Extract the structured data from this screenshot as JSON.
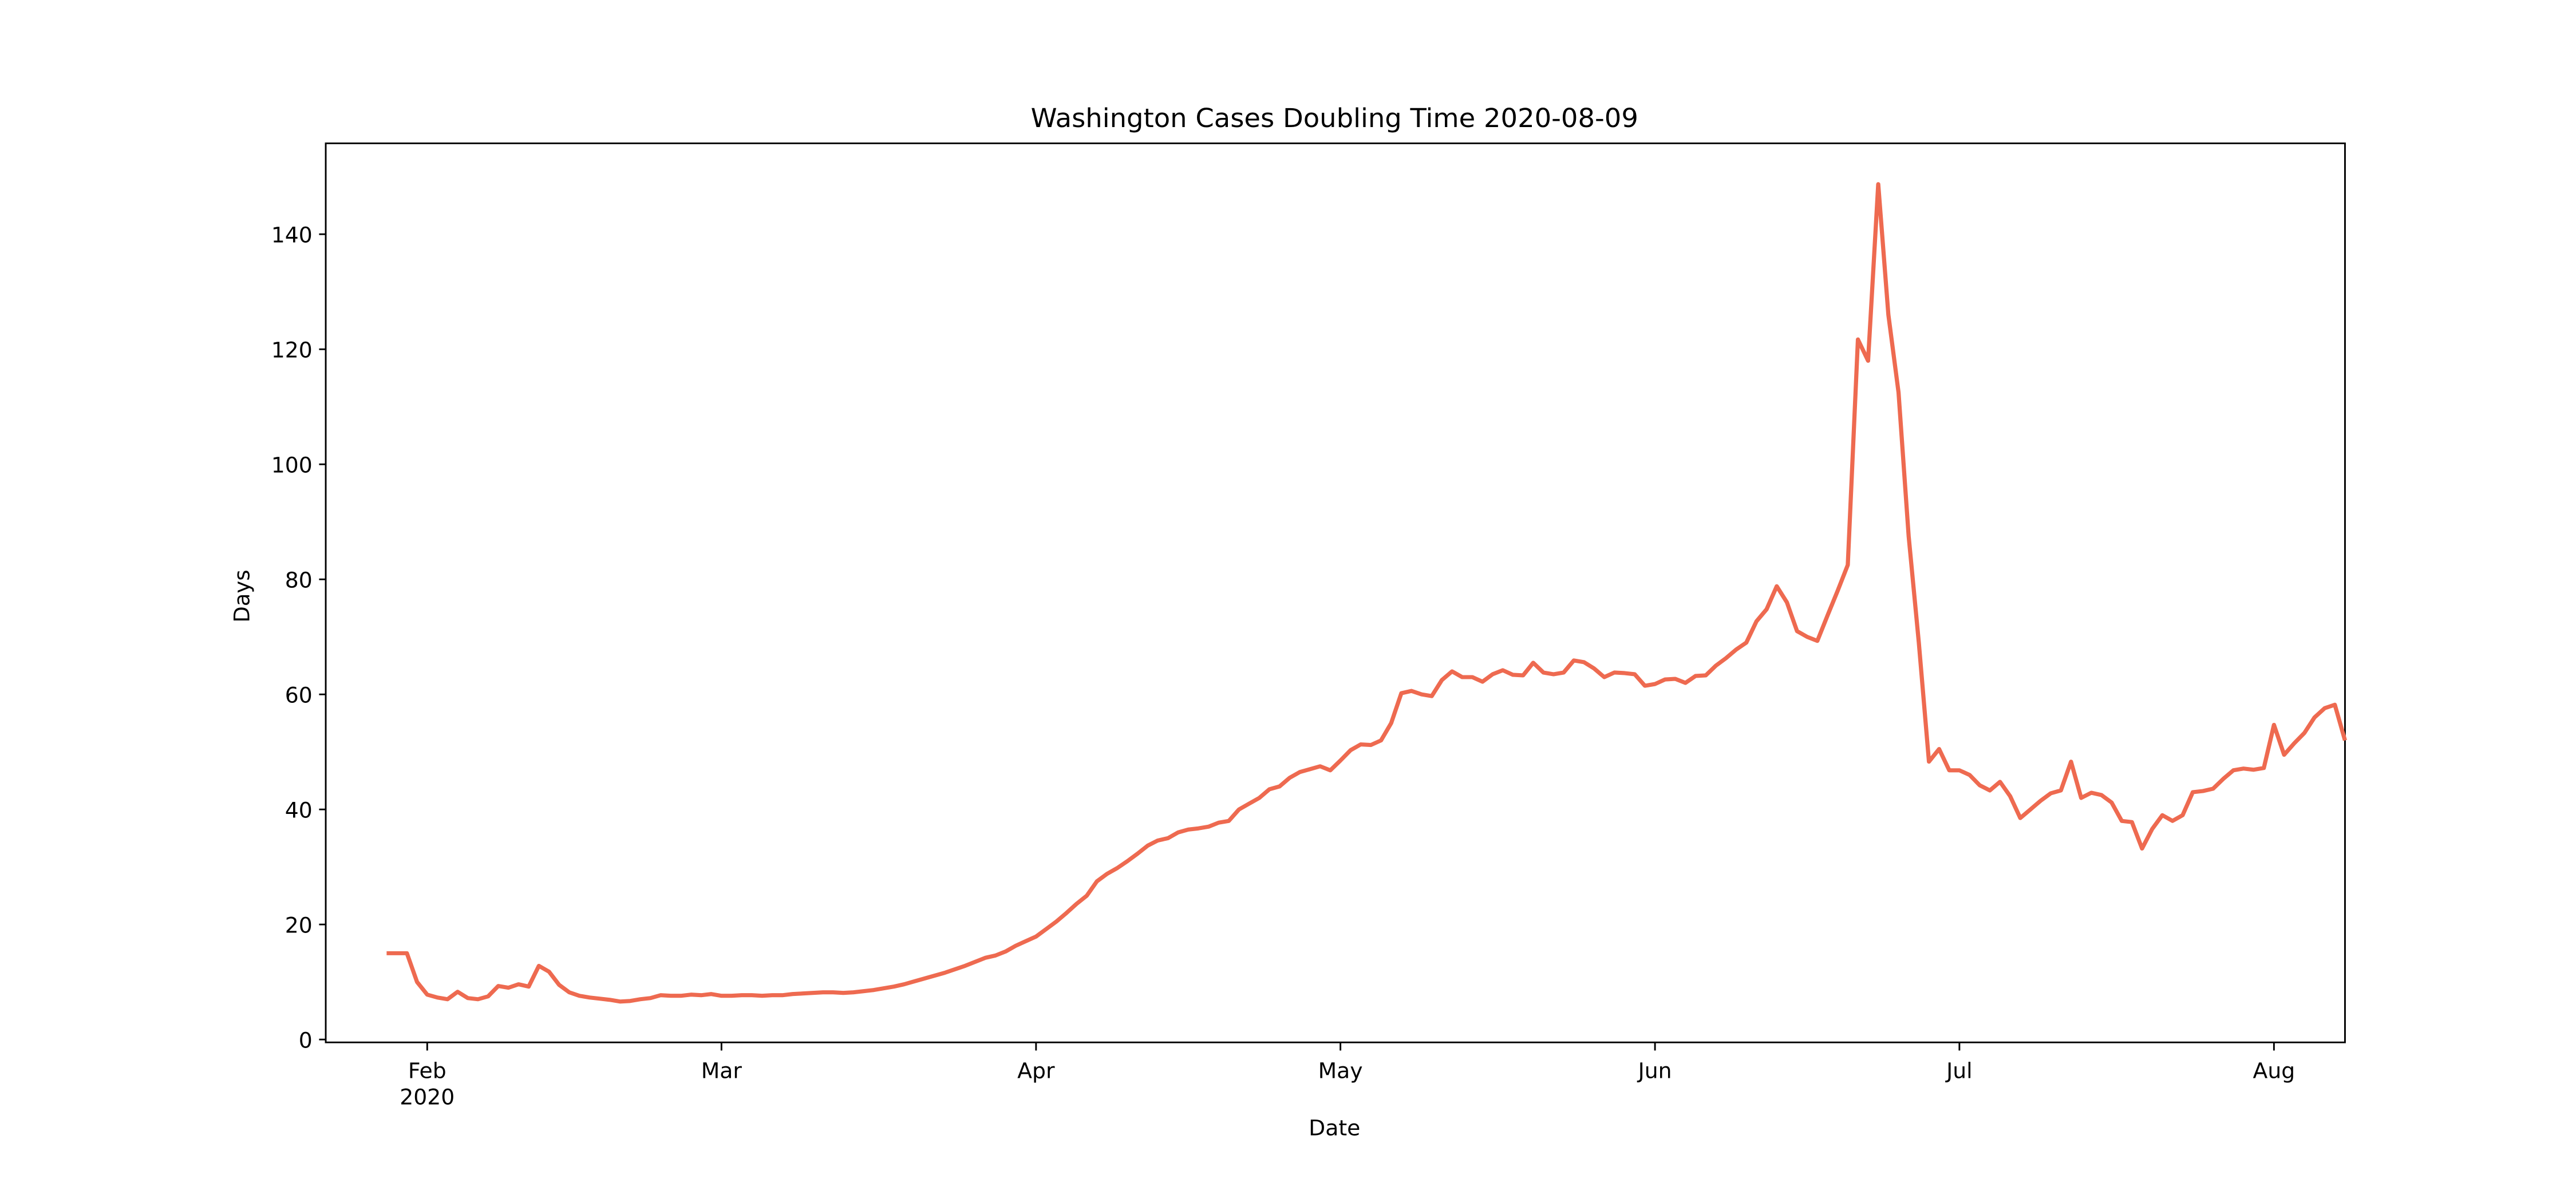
{
  "chart_data": {
    "type": "line",
    "title": "Washington Cases Doubling Time 2020-08-09",
    "xlabel": "Date",
    "ylabel": "Days",
    "xlim": [
      "2020-01-22",
      "2020-08-08"
    ],
    "xticks": [
      {
        "value": "2020-02-01",
        "label": "Feb\n2020"
      },
      {
        "value": "2020-03-01",
        "label": "Mar"
      },
      {
        "value": "2020-04-01",
        "label": "Apr"
      },
      {
        "value": "2020-05-01",
        "label": "May"
      },
      {
        "value": "2020-06-01",
        "label": "Jun"
      },
      {
        "value": "2020-07-01",
        "label": "Jul"
      },
      {
        "value": "2020-08-01",
        "label": "Aug"
      }
    ],
    "ylim": [
      -0.5,
      155.8
    ],
    "yticks": [
      0,
      20,
      40,
      60,
      80,
      100,
      120,
      140
    ],
    "grid": false,
    "x": [
      "2020-01-28",
      "2020-01-29",
      "2020-01-30",
      "2020-01-31",
      "2020-02-01",
      "2020-02-02",
      "2020-02-03",
      "2020-02-04",
      "2020-02-05",
      "2020-02-06",
      "2020-02-07",
      "2020-02-08",
      "2020-02-09",
      "2020-02-10",
      "2020-02-11",
      "2020-02-12",
      "2020-02-13",
      "2020-02-14",
      "2020-02-15",
      "2020-02-16",
      "2020-02-17",
      "2020-02-18",
      "2020-02-19",
      "2020-02-20",
      "2020-02-21",
      "2020-02-22",
      "2020-02-23",
      "2020-02-24",
      "2020-02-25",
      "2020-02-26",
      "2020-02-27",
      "2020-02-28",
      "2020-02-29",
      "2020-03-01",
      "2020-03-02",
      "2020-03-03",
      "2020-03-04",
      "2020-03-05",
      "2020-03-06",
      "2020-03-07",
      "2020-03-08",
      "2020-03-09",
      "2020-03-10",
      "2020-03-11",
      "2020-03-12",
      "2020-03-13",
      "2020-03-14",
      "2020-03-15",
      "2020-03-16",
      "2020-03-17",
      "2020-03-18",
      "2020-03-19",
      "2020-03-20",
      "2020-03-21",
      "2020-03-22",
      "2020-03-23",
      "2020-03-24",
      "2020-03-25",
      "2020-03-26",
      "2020-03-27",
      "2020-03-28",
      "2020-03-29",
      "2020-03-30",
      "2020-03-31",
      "2020-04-01",
      "2020-04-02",
      "2020-04-03",
      "2020-04-04",
      "2020-04-05",
      "2020-04-06",
      "2020-04-07",
      "2020-04-08",
      "2020-04-09",
      "2020-04-10",
      "2020-04-11",
      "2020-04-12",
      "2020-04-13",
      "2020-04-14",
      "2020-04-15",
      "2020-04-16",
      "2020-04-17",
      "2020-04-18",
      "2020-04-19",
      "2020-04-20",
      "2020-04-21",
      "2020-04-22",
      "2020-04-23",
      "2020-04-24",
      "2020-04-25",
      "2020-04-26",
      "2020-04-27",
      "2020-04-28",
      "2020-04-29",
      "2020-04-30",
      "2020-05-01",
      "2020-05-02",
      "2020-05-03",
      "2020-05-04",
      "2020-05-05",
      "2020-05-06",
      "2020-05-07",
      "2020-05-08",
      "2020-05-09",
      "2020-05-10",
      "2020-05-11",
      "2020-05-12",
      "2020-05-13",
      "2020-05-14",
      "2020-05-15",
      "2020-05-16",
      "2020-05-17",
      "2020-05-18",
      "2020-05-19",
      "2020-05-20",
      "2020-05-21",
      "2020-05-22",
      "2020-05-23",
      "2020-05-24",
      "2020-05-25",
      "2020-05-26",
      "2020-05-27",
      "2020-05-28",
      "2020-05-29",
      "2020-05-30",
      "2020-05-31",
      "2020-06-01",
      "2020-06-02",
      "2020-06-03",
      "2020-06-04",
      "2020-06-05",
      "2020-06-06",
      "2020-06-07",
      "2020-06-08",
      "2020-06-09",
      "2020-06-10",
      "2020-06-11",
      "2020-06-12",
      "2020-06-13",
      "2020-06-14",
      "2020-06-15",
      "2020-06-16",
      "2020-06-17",
      "2020-06-18",
      "2020-06-19",
      "2020-06-20",
      "2020-06-21",
      "2020-06-22",
      "2020-06-23",
      "2020-06-24",
      "2020-06-25",
      "2020-06-26",
      "2020-06-27",
      "2020-06-28",
      "2020-06-29",
      "2020-06-30",
      "2020-07-01",
      "2020-07-02",
      "2020-07-03",
      "2020-07-04",
      "2020-07-05",
      "2020-07-06",
      "2020-07-07",
      "2020-07-08",
      "2020-07-09",
      "2020-07-10",
      "2020-07-11",
      "2020-07-12",
      "2020-07-13",
      "2020-07-14",
      "2020-07-15",
      "2020-07-16",
      "2020-07-17",
      "2020-07-18",
      "2020-07-19",
      "2020-07-20",
      "2020-07-21",
      "2020-07-22",
      "2020-07-23",
      "2020-07-24",
      "2020-07-25",
      "2020-07-26",
      "2020-07-27",
      "2020-07-28",
      "2020-07-29",
      "2020-07-30",
      "2020-07-31",
      "2020-08-01",
      "2020-08-02",
      "2020-08-03",
      "2020-08-04",
      "2020-08-05",
      "2020-08-06",
      "2020-08-07",
      "2020-08-08"
    ],
    "series": [
      {
        "name": "Days",
        "color": "#ee6a50",
        "values": [
          15,
          15,
          15,
          10,
          7.8,
          7.3,
          7,
          8.3,
          7.2,
          7,
          7.5,
          9.3,
          9,
          9.6,
          9.2,
          12.8,
          11.8,
          9.5,
          8.2,
          7.6,
          7.3,
          7.1,
          6.9,
          6.6,
          6.7,
          7,
          7.2,
          7.7,
          7.6,
          7.6,
          7.8,
          7.7,
          7.9,
          7.6,
          7.6,
          7.7,
          7.7,
          7.6,
          7.7,
          7.7,
          7.9,
          8,
          8.1,
          8.2,
          8.2,
          8.1,
          8.2,
          8.4,
          8.6,
          8.9,
          9.2,
          9.6,
          10.1,
          10.6,
          11.1,
          11.6,
          12.2,
          12.8,
          13.5,
          14.2,
          14.6,
          15.3,
          16.3,
          17.1,
          17.9,
          19.2,
          20.5,
          22,
          23.6,
          25,
          27.5,
          28.8,
          29.8,
          31,
          32.3,
          33.7,
          34.6,
          35,
          36,
          36.5,
          36.7,
          37,
          37.7,
          38,
          40,
          41,
          42,
          43.5,
          44,
          45.5,
          46.5,
          47,
          47.5,
          46.8,
          48.5,
          50.3,
          51.3,
          51.2,
          52,
          55,
          60.2,
          60.6,
          60,
          59.7,
          62.5,
          64,
          63,
          63,
          62.2,
          63.5,
          64.2,
          63.4,
          63.3,
          65.5,
          63.8,
          63.5,
          63.8,
          65.9,
          65.6,
          64.5,
          63,
          63.8,
          63.7,
          63.5,
          61.5,
          61.8,
          62.6,
          62.7,
          62,
          63.2,
          63.3,
          65,
          66.3,
          67.8,
          69,
          72.7,
          74.8,
          78.8,
          76,
          71,
          70,
          69.3,
          73.7,
          78,
          82.5,
          121.7,
          118,
          148.7,
          126,
          112.5,
          87.5,
          69,
          48.3,
          50.5,
          46.8,
          46.8,
          46,
          44.2,
          43.3,
          44.8,
          42.3,
          38.5,
          40,
          41.5,
          42.8,
          43.3,
          48.3,
          42,
          42.9,
          42.5,
          41.2,
          38,
          37.8,
          33.2,
          36.6,
          39,
          38,
          39,
          43,
          43.2,
          43.6,
          45.3,
          46.8,
          47.1,
          46.9,
          47.2,
          54.7,
          49.5,
          51.5,
          53.3,
          56,
          57.6,
          58.2,
          52
        ]
      }
    ]
  }
}
